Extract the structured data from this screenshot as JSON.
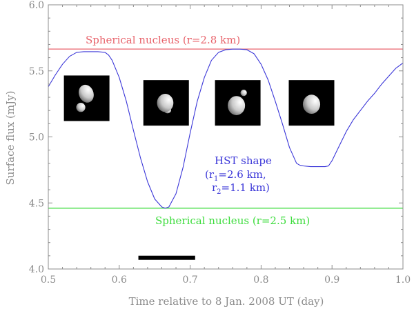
{
  "chart_data": {
    "type": "line",
    "xlabel": "Time relative to 8 Jan. 2008 UT (day)",
    "ylabel": "Surface flux (mJy)",
    "xlim": [
      0.5,
      1.0
    ],
    "ylim": [
      4.0,
      6.0
    ],
    "x_ticks": [
      "0.5",
      "0.6",
      "0.7",
      "0.8",
      "0.9",
      "1.0"
    ],
    "y_ticks": [
      "4.0",
      "4.5",
      "5.0",
      "5.5",
      "6.0"
    ],
    "colors": {
      "red": "#e8636b",
      "green": "#3cdc3c",
      "blue": "#3a36d8",
      "axis": "#8c8c8c"
    },
    "reference_lines": [
      {
        "key": "red_line",
        "y": 5.665,
        "color": "red"
      },
      {
        "key": "green_line",
        "y": 4.46,
        "color": "green"
      }
    ],
    "series": [
      {
        "key": "hst_curve",
        "color": "blue",
        "x": [
          0.5,
          0.51,
          0.52,
          0.53,
          0.54,
          0.55,
          0.56,
          0.57,
          0.58,
          0.585,
          0.59,
          0.6,
          0.61,
          0.62,
          0.63,
          0.64,
          0.65,
          0.66,
          0.665,
          0.67,
          0.68,
          0.69,
          0.7,
          0.71,
          0.72,
          0.73,
          0.74,
          0.75,
          0.76,
          0.77,
          0.78,
          0.79,
          0.8,
          0.81,
          0.82,
          0.83,
          0.84,
          0.85,
          0.855,
          0.86,
          0.87,
          0.88,
          0.89,
          0.895,
          0.9,
          0.91,
          0.92,
          0.93,
          0.94,
          0.95,
          0.96,
          0.97,
          0.98,
          0.99,
          1.0
        ],
        "y": [
          5.38,
          5.47,
          5.55,
          5.61,
          5.64,
          5.645,
          5.645,
          5.645,
          5.64,
          5.62,
          5.58,
          5.45,
          5.27,
          5.05,
          4.84,
          4.66,
          4.53,
          4.47,
          4.46,
          4.47,
          4.57,
          4.77,
          5.03,
          5.27,
          5.45,
          5.58,
          5.64,
          5.66,
          5.665,
          5.665,
          5.66,
          5.63,
          5.55,
          5.43,
          5.27,
          5.1,
          4.92,
          4.8,
          4.785,
          4.78,
          4.775,
          4.775,
          4.775,
          4.78,
          4.82,
          4.93,
          5.04,
          5.13,
          5.2,
          5.27,
          5.33,
          5.4,
          5.46,
          5.52,
          5.56
        ]
      }
    ],
    "annotations": {
      "red_label": "Spherical nucleus (r=2.8 km)",
      "green_label": "Spherical nucleus (r=2.5 km)",
      "hst_title": "HST shape",
      "r1_prefix": "(r",
      "r1_sub": "1",
      "r1_value": "=2.6 km,",
      "r2_prefix": "r",
      "r2_sub": "2",
      "r2_value": "=1.1 km)"
    },
    "time_bar": {
      "x_start": 0.627,
      "x_end": 0.707,
      "y": 4.085
    },
    "insets": [
      {
        "key": "inset-1",
        "x_left": 0.522,
        "y_top": 5.465
      },
      {
        "key": "inset-2",
        "x_left": 0.634,
        "y_top": 5.43
      },
      {
        "key": "inset-3",
        "x_left": 0.735,
        "y_top": 5.43
      },
      {
        "key": "inset-4",
        "x_left": 0.839,
        "y_top": 5.43
      }
    ]
  }
}
